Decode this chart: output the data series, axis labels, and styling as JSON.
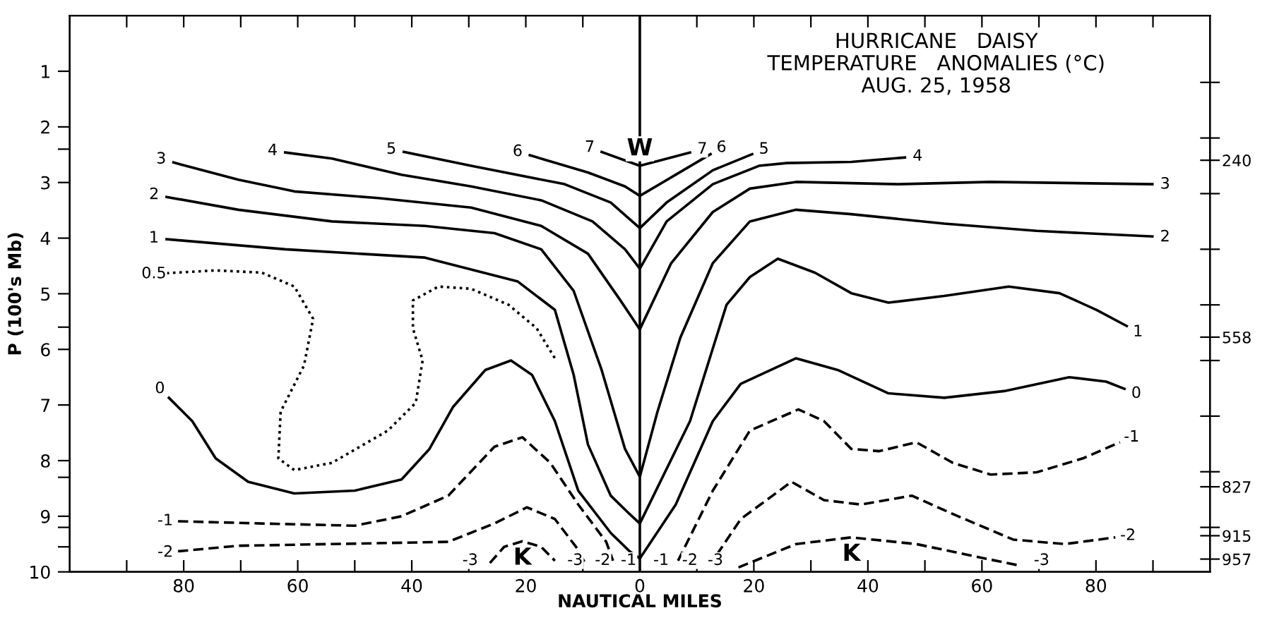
{
  "chart_data": {
    "type": "line",
    "title": "HURRICANE   DAISY\nTEMPERATURE   ANOMALIES (°C)\nAUG. 25, 1958",
    "xlabel": "NAUTICAL MILES",
    "ylabel": "P (100's Mb)",
    "xlim": [
      -100,
      100
    ],
    "xticks": [
      {
        "value": -90,
        "label": null
      },
      {
        "value": -80,
        "label": "80"
      },
      {
        "value": -70,
        "label": null
      },
      {
        "value": -60,
        "label": "60"
      },
      {
        "value": -50,
        "label": null
      },
      {
        "value": -40,
        "label": "40"
      },
      {
        "value": -30,
        "label": null
      },
      {
        "value": -20,
        "label": "20"
      },
      {
        "value": -10,
        "label": null
      },
      0,
      {
        "value": 10,
        "label": null
      },
      20,
      {
        "value": 30,
        "label": null
      },
      40,
      {
        "value": 50,
        "label": null
      },
      60,
      {
        "value": 70,
        "label": null
      },
      80,
      {
        "value": 90,
        "label": null
      }
    ],
    "ylim": [
      10,
      0
    ],
    "yticks": [
      1,
      2,
      {
        "value": 2.4,
        "label": null
      },
      3,
      4,
      5,
      {
        "value": 5.6,
        "label": null
      },
      6,
      7,
      8,
      {
        "value": 8.3,
        "label": null
      },
      9,
      {
        "value": 9.2,
        "label": null
      },
      {
        "value": 9.55,
        "label": null
      },
      10
    ],
    "y2lim": [
      980,
      -20
    ],
    "y2ticks": [
      {
        "value": 100,
        "label": null
      },
      {
        "value": 200,
        "label": null
      },
      240,
      {
        "value": 300,
        "label": null
      },
      {
        "value": 400,
        "label": null
      },
      {
        "value": 500,
        "label": null
      },
      558,
      {
        "value": 600,
        "label": null
      },
      {
        "value": 700,
        "label": null
      },
      {
        "value": 800,
        "label": null
      },
      827,
      {
        "value": 900,
        "label": null
      },
      915,
      957
    ],
    "grid": false,
    "ref_lines": [
      {
        "axis": "x",
        "value": 0,
        "label": null,
        "color": "#000000"
      }
    ],
    "series": [
      {
        "color": "#000000",
        "line_style": "solid",
        "x": [
          -6.7,
          0,
          8.8
        ],
        "values": [
          2.45,
          2.7,
          2.46
        ]
      },
      {
        "color": "#000000",
        "line_style": "solid",
        "x": [
          -19.3,
          -9.1,
          -2.6,
          0,
          6.3,
          12.4
        ],
        "values": [
          2.51,
          2.82,
          3.07,
          3.24,
          2.86,
          2.49
        ]
      },
      {
        "color": "#000000",
        "line_style": "solid",
        "x": [
          -41.4,
          -29.6,
          -13.2,
          -5.1,
          0,
          4.7,
          12.8,
          19.7
        ],
        "values": [
          2.45,
          2.7,
          3.03,
          3.36,
          3.82,
          3.36,
          2.78,
          2.49
        ]
      },
      {
        "color": "#000000",
        "line_style": "solid",
        "x": [
          -62.2,
          -54,
          -41.8,
          -29.6,
          -17.3,
          -8.3,
          -2.6,
          0,
          4.7,
          12.8,
          20.9,
          25.8,
          37.1,
          46.5
        ],
        "values": [
          2.46,
          2.57,
          2.86,
          3.07,
          3.32,
          3.7,
          4.2,
          4.55,
          3.7,
          3.03,
          2.7,
          2.65,
          2.63,
          2.55
        ]
      },
      {
        "color": "#000000",
        "line_style": "solid",
        "x": [
          -81.8,
          -70.4,
          -60.6,
          -45.9,
          -29.6,
          -17.3,
          -9.1,
          -3.4,
          0,
          5.5,
          12.8,
          19.3,
          27.4,
          45.3,
          61.5,
          89.9
        ],
        "values": [
          2.64,
          2.95,
          3.16,
          3.28,
          3.45,
          3.78,
          4.28,
          5.12,
          5.64,
          4.45,
          3.53,
          3.11,
          2.99,
          3.03,
          2.99,
          3.03
        ]
      },
      {
        "color": "#000000",
        "line_style": "solid",
        "x": [
          -83,
          -70.4,
          -54,
          -37.7,
          -25.5,
          -17.3,
          -11.6,
          -6.7,
          -2.6,
          0,
          3.1,
          7.1,
          12.8,
          19.3,
          27.4,
          37.1,
          53.4,
          69.6,
          89.9
        ],
        "values": [
          3.26,
          3.49,
          3.7,
          3.78,
          3.91,
          4.2,
          4.95,
          6.37,
          7.79,
          8.29,
          7.12,
          5.79,
          4.45,
          3.7,
          3.49,
          3.57,
          3.74,
          3.87,
          3.97
        ]
      },
      {
        "color": "#000000",
        "line_style": "solid",
        "x": [
          -83,
          -62.2,
          -37.7,
          -21.4,
          -14.9,
          -11.6,
          -9.1,
          -5.1,
          -1.8,
          0,
          8.8,
          15.2,
          19.3,
          24.2,
          30.7,
          37.1,
          43.6,
          53.4,
          64.7,
          73.6,
          80.1,
          85.4
        ],
        "values": [
          4.02,
          4.2,
          4.35,
          4.78,
          5.29,
          6.46,
          7.71,
          8.63,
          8.96,
          9.13,
          7.29,
          5.2,
          4.7,
          4.37,
          4.62,
          4.99,
          5.16,
          5.04,
          4.87,
          4.99,
          5.29,
          5.58
        ]
      },
      {
        "color": "#000000",
        "line_style": "dotted",
        "x": [
          -83,
          -74.4,
          -66.3,
          -60.6,
          -57.3,
          -58.9,
          -63,
          -63.4,
          -60.6,
          -54,
          -44.2,
          -39.3,
          -38.1,
          -39.8,
          -39.8,
          -35.3,
          -29.6,
          -23,
          -18.1,
          -14.9
        ],
        "values": [
          4.63,
          4.58,
          4.62,
          4.87,
          5.45,
          6.29,
          7.12,
          7.96,
          8.17,
          8.04,
          7.46,
          6.96,
          6.2,
          5.62,
          5.12,
          4.87,
          4.91,
          5.2,
          5.62,
          6.16
        ]
      },
      {
        "color": "#000000",
        "line_style": "solid",
        "x": [
          -82.6,
          -78.5,
          -74.4,
          -68.7,
          -60.6,
          -50,
          -41.8,
          -36.9,
          -32.8,
          -27.1,
          -22.6,
          -18.9,
          -14.9,
          -10.8,
          -5.1,
          -1.8,
          0,
          6.3,
          12.8,
          17.7,
          27.4,
          34.7,
          43.6,
          53.4,
          63.9,
          75.3,
          81.8,
          85
        ],
        "values": [
          6.87,
          7.29,
          7.96,
          8.38,
          8.59,
          8.54,
          8.34,
          7.79,
          7.04,
          6.37,
          6.2,
          6.46,
          7.29,
          8.54,
          9.3,
          9.63,
          9.76,
          8.79,
          7.29,
          6.62,
          6.16,
          6.37,
          6.79,
          6.87,
          6.75,
          6.5,
          6.58,
          6.71
        ]
      },
      {
        "color": "#000000",
        "line_style": "dashed",
        "x": [
          -81,
          -66.3,
          -50,
          -41.8,
          -33.6,
          -25.5,
          -20.6,
          -15.7,
          -10.8,
          -5.9,
          -4.7
        ],
        "values": [
          9.09,
          9.13,
          9.17,
          9.0,
          8.63,
          7.75,
          7.58,
          8.04,
          8.79,
          9.46,
          9.8
        ]
      },
      {
        "color": "#000000",
        "line_style": "dashed",
        "x": [
          6.7,
          12.8,
          19.3,
          27.8,
          32.3,
          37.1,
          42,
          48.5,
          54.9,
          61.5,
          69.6,
          77.7,
          84.2
        ],
        "values": [
          9.8,
          8.54,
          7.46,
          7.08,
          7.29,
          7.79,
          7.83,
          7.67,
          8.04,
          8.25,
          8.21,
          7.96,
          7.67
        ]
      },
      {
        "color": "#000000",
        "line_style": "dashed",
        "x": [
          -81,
          -70.4,
          -54,
          -33.6,
          -25.5,
          -19.8,
          -14.9,
          -11.2,
          -9.6
        ],
        "values": [
          9.63,
          9.53,
          9.5,
          9.46,
          9.13,
          8.84,
          9.05,
          9.55,
          9.84
        ]
      },
      {
        "color": "#000000",
        "line_style": "dashed",
        "x": [
          12,
          17.7,
          26.6,
          32.3,
          38.8,
          47.7,
          54.9,
          65.5,
          74.5,
          83.4
        ],
        "values": [
          9.92,
          9.05,
          8.38,
          8.71,
          8.79,
          8.63,
          8.96,
          9.42,
          9.5,
          9.38
        ]
      },
      {
        "color": "#000000",
        "line_style": "dashed",
        "x": [
          -26.3,
          -23.8,
          -20.6,
          -17.3,
          -14.9
        ],
        "values": [
          9.84,
          9.55,
          9.45,
          9.55,
          9.8
        ]
      },
      {
        "color": "#000000",
        "line_style": "dashed",
        "x": [
          17.3,
          27.4,
          37.1,
          48.5,
          58.2,
          66.3
        ],
        "values": [
          9.92,
          9.5,
          9.38,
          9.5,
          9.71,
          9.88
        ]
      }
    ],
    "annotations": [
      {
        "text": "7",
        "x": -6.7,
        "y": 2.45
      },
      {
        "text": "7",
        "x": 8.8,
        "y": 2.46
      },
      {
        "text": "6",
        "x": -19.3,
        "y": 2.51
      },
      {
        "text": "6",
        "x": 12.4,
        "y": 2.49
      },
      {
        "text": "5",
        "x": -41.4,
        "y": 2.45
      },
      {
        "text": "5",
        "x": 19.7,
        "y": 2.49
      },
      {
        "text": "4",
        "x": -62.2,
        "y": 2.46
      },
      {
        "text": "4",
        "x": 46.5,
        "y": 2.55
      },
      {
        "text": "3",
        "x": -81.8,
        "y": 2.64
      },
      {
        "text": "3",
        "x": 89.9,
        "y": 3.03
      },
      {
        "text": "2",
        "x": -83,
        "y": 3.26
      },
      {
        "text": "2",
        "x": 89.9,
        "y": 3.97
      },
      {
        "text": "1",
        "x": -83,
        "y": 4.02
      },
      {
        "text": "1",
        "x": 85.4,
        "y": 5.58
      },
      {
        "text": "0.5",
        "x": -83,
        "y": 4.63
      },
      {
        "text": "0",
        "x": -82.6,
        "y": 6.87
      },
      {
        "text": "0",
        "x": 85,
        "y": 6.71
      },
      {
        "text": "-1",
        "x": -81,
        "y": 9.09
      },
      {
        "text": "-1",
        "x": -4.7,
        "y": 9.8
      },
      {
        "text": "-1",
        "x": 6.7,
        "y": 9.8
      },
      {
        "text": "-1",
        "x": 84.2,
        "y": 7.67
      },
      {
        "text": "-2",
        "x": -81,
        "y": 9.63
      },
      {
        "text": "-2",
        "x": -9.6,
        "y": 9.84
      },
      {
        "text": "-2",
        "x": 12,
        "y": 9.92
      },
      {
        "text": "-2",
        "x": 83.4,
        "y": 9.38
      },
      {
        "text": "-3",
        "x": -26.3,
        "y": 9.84
      },
      {
        "text": "-3",
        "x": -14.9,
        "y": 9.8
      },
      {
        "text": "-3",
        "x": 17.3,
        "y": 9.92
      },
      {
        "text": "-3",
        "x": 66.3,
        "y": 9.88
      },
      {
        "text": "W",
        "x": 0,
        "y": 2.7
      },
      {
        "text": "K",
        "x": -20.6,
        "y": 9.45
      },
      {
        "text": "K",
        "x": 37.1,
        "y": 9.38
      }
    ]
  }
}
